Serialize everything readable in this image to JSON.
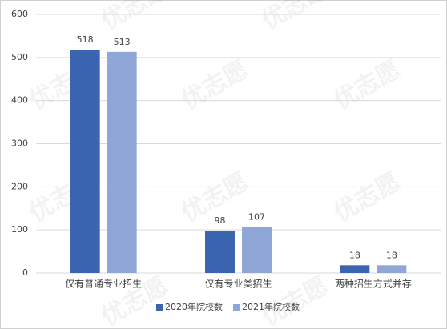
{
  "chart_data": {
    "type": "bar",
    "categories": [
      "仅有普通专业招生",
      "仅有专业类招生",
      "两种招生方式并存"
    ],
    "series": [
      {
        "name": "2020年院校数",
        "color": "#3b64b1",
        "values": [
          518,
          98,
          18
        ]
      },
      {
        "name": "2021年院校数",
        "color": "#8fa6d7",
        "values": [
          513,
          107,
          18
        ]
      }
    ],
    "ylim": [
      0,
      600
    ],
    "yticks": [
      0,
      100,
      200,
      300,
      400,
      500,
      600
    ],
    "grid": true,
    "legend": "bottom",
    "watermark": "优志愿"
  }
}
